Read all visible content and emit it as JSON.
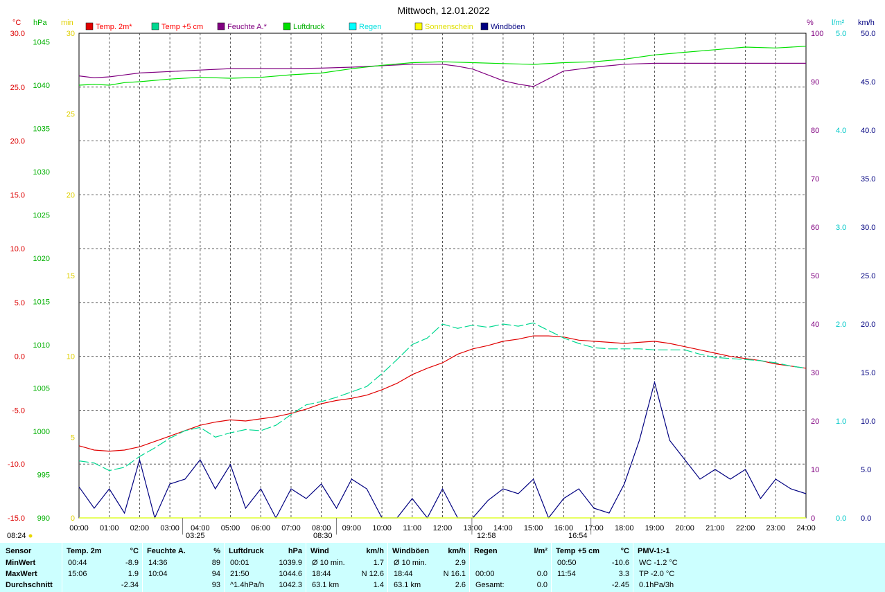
{
  "title": "Mittwoch, 12.01.2022",
  "legend": [
    {
      "label": "Temp. 2m*",
      "color": "#e00000",
      "textColor": "#ff0000"
    },
    {
      "label": "Temp +5 cm",
      "color": "#00d890",
      "textColor": "#ff0000"
    },
    {
      "label": "Feuchte A.*",
      "color": "#800080",
      "textColor": "#800080"
    },
    {
      "label": "Luftdruck",
      "color": "#00e000",
      "textColor": "#00b000"
    },
    {
      "label": "Regen",
      "color": "#00ffff",
      "textColor": "#00e0e0"
    },
    {
      "label": "Sonnenschein",
      "color": "#ffff00",
      "textColor": "#e0e000"
    },
    {
      "label": "Windböen",
      "color": "#000080",
      "textColor": "#000080"
    }
  ],
  "axis_units": {
    "temp": "°C",
    "pressure": "hPa",
    "sun": "min",
    "humidity": "%",
    "rain": "l/m²",
    "wind": "km/h"
  },
  "colors": {
    "temp": "#dd0000",
    "pressure": "#00b000",
    "sun": "#e0d000",
    "humidity": "#800080",
    "rain": "#00c8c8",
    "wind": "#000080",
    "grid": "#555555"
  },
  "sun_events": [
    {
      "time": "08:24",
      "hour": 8.4
    },
    {
      "time": "03:25",
      "hour": 3.42
    },
    {
      "time": "08:30",
      "hour": 8.5
    },
    {
      "time": "12:58",
      "hour": 12.97
    },
    {
      "time": "16:54",
      "hour": 16.9
    }
  ],
  "chart_data": {
    "type": "line",
    "title": "Mittwoch, 12.01.2022",
    "x_ticks": [
      "00:00",
      "01:00",
      "02:00",
      "03:00",
      "04:00",
      "05:00",
      "06:00",
      "07:00",
      "08:00",
      "09:00",
      "10:00",
      "11:00",
      "12:00",
      "13:00",
      "14:00",
      "15:00",
      "16:00",
      "17:00",
      "18:00",
      "19:00",
      "20:00",
      "21:00",
      "22:00",
      "23:00",
      "24:00"
    ],
    "axes": {
      "temp": {
        "unit": "°C",
        "range": [
          -15,
          30
        ],
        "ticks": [
          "30.0",
          "25.0",
          "20.0",
          "15.0",
          "10.0",
          "5.0",
          "0.0",
          "-5.0",
          "-10.0",
          "-15.0"
        ]
      },
      "pressure": {
        "unit": "hPa",
        "range": [
          990,
          1046
        ],
        "ticks": [
          "1045",
          "1040",
          "1035",
          "1030",
          "1025",
          "1020",
          "1015",
          "1010",
          "1005",
          "1000",
          "995",
          "990"
        ]
      },
      "sun": {
        "unit": "min",
        "range": [
          0,
          30
        ],
        "ticks": [
          "30",
          "25",
          "20",
          "15",
          "10",
          "5",
          "0"
        ]
      },
      "humidity": {
        "unit": "%",
        "range": [
          0,
          100
        ],
        "ticks": [
          "100",
          "90",
          "80",
          "70",
          "60",
          "50",
          "40",
          "30",
          "20",
          "10",
          "0"
        ]
      },
      "rain": {
        "unit": "l/m²",
        "range": [
          0,
          5
        ],
        "ticks": [
          "5.0",
          "4.0",
          "3.0",
          "2.0",
          "1.0",
          "0.0"
        ]
      },
      "wind": {
        "unit": "km/h",
        "range": [
          0,
          50
        ],
        "ticks": [
          "50.0",
          "45.0",
          "40.0",
          "35.0",
          "30.0",
          "25.0",
          "20.0",
          "15.0",
          "10.0",
          "5.0",
          "0.0"
        ]
      }
    },
    "grid": true,
    "legend_position": "top",
    "series": [
      {
        "name": "Temp. 2m*",
        "axis": "temp",
        "x": [
          0,
          0.5,
          1,
          1.5,
          2,
          2.5,
          3,
          3.5,
          4,
          4.5,
          5,
          5.5,
          6,
          6.5,
          7,
          7.5,
          8,
          8.5,
          9,
          9.5,
          10,
          10.5,
          11,
          11.5,
          12,
          12.5,
          13,
          13.5,
          14,
          14.5,
          15,
          15.5,
          16,
          16.5,
          17,
          17.5,
          18,
          18.5,
          19,
          19.5,
          20,
          20.5,
          21,
          21.5,
          22,
          22.5,
          23,
          23.5,
          24
        ],
        "values": [
          -8.3,
          -8.7,
          -8.8,
          -8.7,
          -8.4,
          -7.9,
          -7.4,
          -6.9,
          -6.4,
          -6.1,
          -5.9,
          -6.0,
          -5.8,
          -5.6,
          -5.3,
          -4.9,
          -4.4,
          -4.1,
          -3.9,
          -3.6,
          -3.1,
          -2.5,
          -1.7,
          -1.1,
          -0.6,
          0.2,
          0.7,
          1.0,
          1.4,
          1.6,
          1.9,
          1.9,
          1.8,
          1.5,
          1.4,
          1.3,
          1.2,
          1.3,
          1.4,
          1.2,
          0.9,
          0.6,
          0.3,
          0.0,
          -0.2,
          -0.4,
          -0.7,
          -0.9,
          -1.1
        ]
      },
      {
        "name": "Temp +5 cm",
        "axis": "temp",
        "x": [
          0,
          0.5,
          1,
          1.5,
          2,
          2.5,
          3,
          3.5,
          4,
          4.5,
          5,
          5.5,
          6,
          6.5,
          7,
          7.5,
          8,
          8.5,
          9,
          9.5,
          10,
          10.5,
          11,
          11.5,
          12,
          12.5,
          13,
          13.5,
          14,
          14.5,
          15,
          15.5,
          16,
          16.5,
          17,
          17.5,
          18,
          18.5,
          19,
          19.5,
          20,
          20.5,
          21,
          21.5,
          22,
          22.5,
          23,
          23.5,
          24
        ],
        "values": [
          -9.7,
          -9.9,
          -10.6,
          -10.3,
          -9.3,
          -8.5,
          -7.6,
          -6.9,
          -6.6,
          -7.5,
          -7.1,
          -6.8,
          -6.9,
          -6.4,
          -5.4,
          -4.5,
          -4.2,
          -3.8,
          -3.3,
          -2.8,
          -1.6,
          -0.3,
          1.1,
          1.7,
          3.0,
          2.6,
          2.9,
          2.7,
          3.0,
          2.8,
          3.1,
          2.4,
          1.7,
          1.2,
          0.8,
          0.7,
          0.7,
          0.7,
          0.6,
          0.6,
          0.6,
          0.2,
          -0.1,
          -0.2,
          -0.3,
          -0.4,
          -0.6,
          -0.9,
          -1.1
        ]
      },
      {
        "name": "Feuchte A.*",
        "axis": "humidity",
        "x": [
          0,
          0.5,
          1,
          1.5,
          2,
          3,
          4,
          5,
          6,
          7,
          8,
          9,
          10,
          11,
          12,
          12.5,
          13,
          13.5,
          14,
          14.5,
          15,
          15.5,
          16,
          16.5,
          17,
          17.5,
          18,
          19,
          20,
          21,
          22,
          23,
          24
        ],
        "values": [
          91.2,
          90.8,
          91.0,
          91.4,
          91.8,
          92.1,
          92.4,
          92.7,
          92.7,
          92.7,
          92.8,
          93.0,
          93.3,
          93.6,
          93.6,
          93.2,
          92.6,
          91.4,
          90.2,
          89.5,
          89.0,
          90.6,
          92.2,
          92.6,
          93.0,
          93.3,
          93.6,
          93.8,
          93.8,
          93.8,
          93.8,
          93.8,
          93.8
        ]
      },
      {
        "name": "Luftdruck",
        "axis": "pressure",
        "x": [
          0,
          0.5,
          1,
          1.5,
          2,
          3,
          4,
          5,
          6,
          7,
          8,
          9,
          10,
          11,
          12,
          13,
          14,
          15,
          16,
          17,
          18,
          19,
          20,
          21,
          22,
          23,
          24
        ],
        "values": [
          1040.0,
          1040.1,
          1040.0,
          1040.3,
          1040.4,
          1040.7,
          1040.9,
          1040.8,
          1040.9,
          1041.2,
          1041.4,
          1041.9,
          1042.3,
          1042.6,
          1042.7,
          1042.6,
          1042.5,
          1042.4,
          1042.6,
          1042.7,
          1043.0,
          1043.5,
          1043.8,
          1044.1,
          1044.4,
          1044.3,
          1044.5
        ]
      },
      {
        "name": "Windböen",
        "axis": "wind",
        "x": [
          0,
          0.5,
          1,
          1.5,
          2,
          2.5,
          3,
          3.5,
          4,
          4.5,
          5,
          5.5,
          6,
          6.5,
          7,
          7.5,
          8,
          8.5,
          9,
          9.5,
          10,
          10.5,
          11,
          11.5,
          12,
          12.5,
          13,
          13.5,
          14,
          14.5,
          15,
          15.5,
          16,
          16.5,
          17,
          17.5,
          18,
          18.5,
          19,
          19.5,
          20,
          20.5,
          21,
          21.5,
          22,
          22.5,
          23,
          23.5,
          24
        ],
        "values": [
          3.2,
          1.0,
          3.0,
          0.5,
          6.0,
          0.0,
          3.5,
          4.0,
          6.0,
          3.0,
          5.5,
          1.0,
          3.0,
          0.0,
          3.0,
          2.0,
          3.5,
          1.0,
          4.0,
          3.0,
          0.0,
          0.0,
          2.0,
          0.0,
          3.0,
          0.0,
          0.0,
          1.8,
          3.0,
          2.5,
          4.0,
          0.0,
          2.0,
          3.0,
          1.0,
          0.5,
          3.5,
          8.0,
          14.0,
          8.0,
          6.0,
          4.0,
          5.0,
          4.0,
          5.0,
          2.0,
          4.0,
          3.0,
          2.5
        ]
      },
      {
        "name": "Regen",
        "axis": "rain",
        "x": [
          0,
          24
        ],
        "values": [
          0.0,
          0.0
        ]
      },
      {
        "name": "Sonnenschein",
        "axis": "sun",
        "x": [
          0,
          24
        ],
        "values": [
          0,
          0
        ]
      }
    ]
  },
  "stats": {
    "sensor": {
      "header": "Sensor",
      "min": "MinWert",
      "max": "MaxWert",
      "avg": "Durchschnitt"
    },
    "columns": [
      {
        "title": "Temp. 2m",
        "unit": "°C",
        "rows": [
          [
            "00:44",
            "-8.9"
          ],
          [
            "15:06",
            "1.9"
          ],
          [
            "",
            "-2.34"
          ]
        ]
      },
      {
        "title": "Feuchte A.",
        "unit": "%",
        "rows": [
          [
            "14:36",
            "89"
          ],
          [
            "10:04",
            "94"
          ],
          [
            "",
            "93"
          ]
        ]
      },
      {
        "title": "Luftdruck",
        "unit": "hPa",
        "rows": [
          [
            "00:01",
            "1039.9"
          ],
          [
            "21:50",
            "1044.6"
          ],
          [
            "^1.4hPa/h",
            "1042.3"
          ]
        ]
      },
      {
        "title": "Wind",
        "unit": "km/h",
        "rows": [
          [
            "Ø 10 min.",
            "1.7"
          ],
          [
            "18:44",
            "N 12.6"
          ],
          [
            "63.1 km",
            "1.4"
          ]
        ]
      },
      {
        "title": "Windböen",
        "unit": "km/h",
        "rows": [
          [
            "Ø 10 min.",
            "2.9"
          ],
          [
            "18:44",
            "N 16.1"
          ],
          [
            "63.1 km",
            "2.6"
          ]
        ]
      },
      {
        "title": "Regen",
        "unit": "l/m²",
        "rows": [
          [
            "",
            ""
          ],
          [
            "00:00",
            "0.0"
          ],
          [
            "Gesamt:",
            "0.0"
          ]
        ]
      },
      {
        "title": "Temp +5 cm",
        "unit": "°C",
        "rows": [
          [
            "00:50",
            "-10.6"
          ],
          [
            "11:54",
            "3.3"
          ],
          [
            "",
            "-2.45"
          ]
        ]
      },
      {
        "title": "PMV-1:-1",
        "unit": "",
        "rows": [
          [
            "WC -1.2 °C",
            ""
          ],
          [
            "TP -2.0 °C",
            ""
          ],
          [
            "0.1hPa/3h",
            ""
          ]
        ]
      }
    ]
  }
}
